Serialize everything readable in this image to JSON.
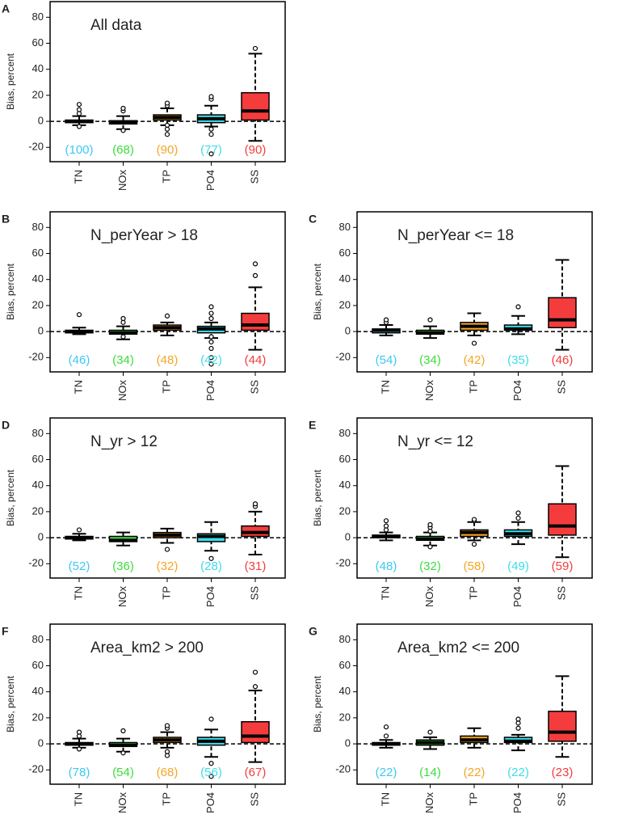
{
  "chart_data": [
    {
      "type": "box",
      "panel": "A",
      "title": "All data",
      "ylabel": "Bias, percent",
      "ylim": [
        -31,
        92
      ],
      "yticks": [
        -20,
        0,
        20,
        40,
        60,
        80
      ],
      "hline": 0,
      "series": [
        {
          "name": "TN",
          "color": "#3cc8f5",
          "values": [
            -3,
            -1,
            0,
            1,
            4
          ],
          "outliers": [
            -4,
            6,
            9,
            13
          ],
          "count_label": "(100)"
        },
        {
          "name": "NOx",
          "color": "#3ddc3d",
          "values": [
            -6,
            -2,
            -1,
            0.5,
            4
          ],
          "outliers": [
            -7,
            8,
            10
          ],
          "count_label": "(68)"
        },
        {
          "name": "TP",
          "color": "#f5a623",
          "values": [
            -3,
            1,
            3,
            5,
            10
          ],
          "outliers": [
            -10,
            -6,
            -3,
            12,
            14
          ],
          "count_label": "(90)"
        },
        {
          "name": "PO4",
          "color": "#3cdcea",
          "values": [
            -4,
            -1,
            2,
            5,
            12
          ],
          "outliers": [
            -25,
            -10,
            -6,
            17,
            19
          ],
          "count_label": "(77)"
        },
        {
          "name": "SS",
          "color": "#f53c3c",
          "values": [
            -15,
            1,
            8,
            22,
            52
          ],
          "outliers": [
            56
          ],
          "count_label": "(90)"
        }
      ]
    },
    {
      "type": "box",
      "panel": "B",
      "title": "N_perYear > 18",
      "ylabel": "Bias, percent",
      "ylim": [
        -31,
        92
      ],
      "yticks": [
        -20,
        0,
        20,
        40,
        60,
        80
      ],
      "hline": 0,
      "series": [
        {
          "name": "TN",
          "color": "#3cc8f5",
          "values": [
            -2,
            -1,
            0,
            1,
            3
          ],
          "outliers": [
            13
          ],
          "count_label": "(46)"
        },
        {
          "name": "NOx",
          "color": "#3ddc3d",
          "values": [
            -6,
            -2,
            -1,
            1,
            4
          ],
          "outliers": [
            -4,
            7,
            10
          ],
          "count_label": "(34)"
        },
        {
          "name": "TP",
          "color": "#f5a623",
          "values": [
            -3,
            1,
            3,
            5,
            7
          ],
          "outliers": [
            12
          ],
          "count_label": "(48)"
        },
        {
          "name": "PO4",
          "color": "#3cdcea",
          "values": [
            -5,
            -1,
            2,
            4,
            7
          ],
          "outliers": [
            -25,
            -20,
            -13,
            -8,
            -4,
            10,
            14,
            19
          ],
          "count_label": "(42)"
        },
        {
          "name": "SS",
          "color": "#f53c3c",
          "values": [
            -14,
            1,
            5,
            14,
            34
          ],
          "outliers": [
            43,
            52
          ],
          "count_label": "(44)"
        }
      ]
    },
    {
      "type": "box",
      "panel": "C",
      "title": "N_perYear <= 18",
      "ylabel": "Bias, percent",
      "ylim": [
        -31,
        92
      ],
      "yticks": [
        -20,
        0,
        20,
        40,
        60,
        80
      ],
      "hline": 0,
      "series": [
        {
          "name": "TN",
          "color": "#3cc8f5",
          "values": [
            -3,
            -1,
            1,
            2,
            5
          ],
          "outliers": [
            7,
            9
          ],
          "count_label": "(54)"
        },
        {
          "name": "NOx",
          "color": "#3ddc3d",
          "values": [
            -5,
            -2,
            -1,
            1,
            4
          ],
          "outliers": [
            9
          ],
          "count_label": "(34)"
        },
        {
          "name": "TP",
          "color": "#f5a623",
          "values": [
            -3,
            1,
            4,
            7,
            14
          ],
          "outliers": [
            -9
          ],
          "count_label": "(42)"
        },
        {
          "name": "PO4",
          "color": "#3cdcea",
          "values": [
            -2,
            1,
            2,
            5,
            12
          ],
          "outliers": [
            19
          ],
          "count_label": "(35)"
        },
        {
          "name": "SS",
          "color": "#f53c3c",
          "values": [
            -14,
            3,
            9,
            26,
            55
          ],
          "outliers": [],
          "count_label": "(46)"
        }
      ]
    },
    {
      "type": "box",
      "panel": "D",
      "title": "N_yr > 12",
      "ylabel": "Bias, percent",
      "ylim": [
        -31,
        92
      ],
      "yticks": [
        -20,
        0,
        20,
        40,
        60,
        80
      ],
      "hline": 0,
      "series": [
        {
          "name": "TN",
          "color": "#3cc8f5",
          "values": [
            -2,
            -1,
            0,
            1,
            3
          ],
          "outliers": [
            6
          ],
          "count_label": "(52)"
        },
        {
          "name": "NOx",
          "color": "#3ddc3d",
          "values": [
            -6,
            -3,
            -2,
            1,
            4
          ],
          "outliers": [],
          "count_label": "(36)"
        },
        {
          "name": "TP",
          "color": "#f5a623",
          "values": [
            -4,
            0,
            2,
            4,
            7
          ],
          "outliers": [
            -9
          ],
          "count_label": "(32)"
        },
        {
          "name": "PO4",
          "color": "#3cdcea",
          "values": [
            -10,
            -3,
            1,
            3,
            12
          ],
          "outliers": [
            -16
          ],
          "count_label": "(28)"
        },
        {
          "name": "SS",
          "color": "#f53c3c",
          "values": [
            -13,
            1,
            4,
            9,
            20
          ],
          "outliers": [
            24,
            26
          ],
          "count_label": "(31)"
        }
      ]
    },
    {
      "type": "box",
      "panel": "E",
      "title": "N_yr <= 12",
      "ylabel": "Bias, percent",
      "ylim": [
        -31,
        92
      ],
      "yticks": [
        -20,
        0,
        20,
        40,
        60,
        80
      ],
      "hline": 0,
      "series": [
        {
          "name": "TN",
          "color": "#3cc8f5",
          "values": [
            -2,
            0,
            1,
            2,
            4
          ],
          "outliers": [
            6,
            9,
            13
          ],
          "count_label": "(48)"
        },
        {
          "name": "NOx",
          "color": "#3ddc3d",
          "values": [
            -6,
            -2,
            -1,
            1,
            4
          ],
          "outliers": [
            -7,
            5,
            8,
            10
          ],
          "count_label": "(32)"
        },
        {
          "name": "TP",
          "color": "#f5a623",
          "values": [
            -2,
            1,
            4,
            6,
            12
          ],
          "outliers": [
            -5,
            13,
            14
          ],
          "count_label": "(58)"
        },
        {
          "name": "PO4",
          "color": "#3cdcea",
          "values": [
            -5,
            1,
            3,
            6,
            12
          ],
          "outliers": [
            15,
            19
          ],
          "count_label": "(49)"
        },
        {
          "name": "SS",
          "color": "#f53c3c",
          "values": [
            -15,
            2,
            9,
            26,
            55
          ],
          "outliers": [],
          "count_label": "(59)"
        }
      ]
    },
    {
      "type": "box",
      "panel": "F",
      "title": "Area_km2 > 200",
      "ylabel": "Bias, percent",
      "ylim": [
        -31,
        92
      ],
      "yticks": [
        -20,
        0,
        20,
        40,
        60,
        80
      ],
      "hline": 0,
      "series": [
        {
          "name": "TN",
          "color": "#3cc8f5",
          "values": [
            -3,
            -1,
            0,
            1,
            4
          ],
          "outliers": [
            -4,
            6,
            9
          ],
          "count_label": "(78)"
        },
        {
          "name": "NOx",
          "color": "#3ddc3d",
          "values": [
            -6,
            -2,
            -1,
            1,
            4
          ],
          "outliers": [
            -7,
            10
          ],
          "count_label": "(54)"
        },
        {
          "name": "TP",
          "color": "#f5a623",
          "values": [
            -3,
            1,
            3,
            5,
            9
          ],
          "outliers": [
            -9,
            -6,
            12,
            14
          ],
          "count_label": "(68)"
        },
        {
          "name": "PO4",
          "color": "#3cdcea",
          "values": [
            -10,
            -1,
            2,
            5,
            11
          ],
          "outliers": [
            -25,
            -15,
            19
          ],
          "count_label": "(56)"
        },
        {
          "name": "SS",
          "color": "#f53c3c",
          "values": [
            -14,
            1,
            6,
            17,
            41
          ],
          "outliers": [
            44,
            55
          ],
          "count_label": "(67)"
        }
      ]
    },
    {
      "type": "box",
      "panel": "G",
      "title": "Area_km2 <= 200",
      "ylabel": "Bias, percent",
      "ylim": [
        -31,
        92
      ],
      "yticks": [
        -20,
        0,
        20,
        40,
        60,
        80
      ],
      "hline": 0,
      "series": [
        {
          "name": "TN",
          "color": "#3cc8f5",
          "values": [
            -3,
            -1,
            0,
            1,
            3
          ],
          "outliers": [
            6,
            13
          ],
          "count_label": "(22)"
        },
        {
          "name": "NOx",
          "color": "#3ddc3d",
          "values": [
            -4,
            -1,
            1,
            3,
            5
          ],
          "outliers": [
            9
          ],
          "count_label": "(14)"
        },
        {
          "name": "TP",
          "color": "#f5a623",
          "values": [
            -3,
            1,
            3,
            6,
            12
          ],
          "outliers": [],
          "count_label": "(22)"
        },
        {
          "name": "PO4",
          "color": "#3cdcea",
          "values": [
            -5,
            1,
            2,
            5,
            7
          ],
          "outliers": [
            12,
            16,
            19
          ],
          "count_label": "(22)"
        },
        {
          "name": "SS",
          "color": "#f53c3c",
          "values": [
            -10,
            2,
            9,
            25,
            52
          ],
          "outliers": [],
          "count_label": "(23)"
        }
      ]
    }
  ]
}
